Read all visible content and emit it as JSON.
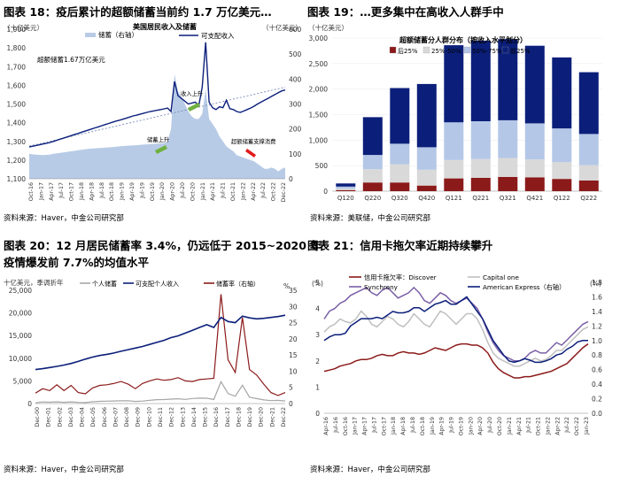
{
  "panels": [
    {
      "title": "图表 18：疫后累计的超额储蓄当前约 1.7 万亿美元…",
      "source": "资料来源：Haver，中金公司研究部"
    },
    {
      "title": "图表 19：…更多集中在高收入人群手中",
      "source": "资料来源：美联储，中金公司研究部"
    },
    {
      "title": "图表 20：12 月居民储蓄率 3.4%，仍远低于 2015~2020 年",
      "title2": "疫情爆发前 7.7%的均值水平",
      "source": "资料来源：Haver，中金公司研究部"
    },
    {
      "title": "图表 21：信用卡拖欠率近期持续攀升",
      "source": "资料来源：Haver，中金公司研究部"
    }
  ],
  "chart_data": [
    {
      "type": "line",
      "title": "美国居民收入及储蓄",
      "left_unit": "（十亿美元）",
      "right_unit": "（十亿美元）",
      "legend": [
        "储蓄（右轴）",
        "可支配收入"
      ],
      "ylim": [
        1100,
        1900
      ],
      "ylim_right": [
        0,
        600
      ],
      "y_ticks": [
        "1,100",
        "1,200",
        "1,300",
        "1,400",
        "1,500",
        "1,600",
        "1,700",
        "1,800",
        "1,900"
      ],
      "y_ticks_right": [
        "0",
        "100",
        "200",
        "300",
        "400",
        "500",
        "600"
      ],
      "x_ticks": [
        "Oct-16",
        "Jan-17",
        "Apr-17",
        "Jul-17",
        "Oct-17",
        "Jan-18",
        "Apr-18",
        "Jul-18",
        "Oct-18",
        "Jan-19",
        "Apr-19",
        "Jul-19",
        "Oct-19",
        "Jan-20",
        "Apr-20",
        "Jul-20",
        "Oct-20",
        "Jan-21",
        "Apr-21",
        "Jul-21",
        "Oct-21",
        "Jan-22",
        "Apr-22",
        "Jul-22",
        "Oct-22",
        "Dec-22"
      ],
      "annotations": [
        "超额储蓄1.67万亿美元",
        "收入上升",
        "储蓄上升",
        "超额储蓄支撑消费"
      ],
      "series": [
        {
          "name": "可支配收入",
          "color": "#0b1f7a",
          "values": [
            1270,
            1274,
            1278,
            1282,
            1286,
            1290,
            1294,
            1300,
            1306,
            1312,
            1318,
            1324,
            1330,
            1336,
            1342,
            1348,
            1354,
            1360,
            1366,
            1372,
            1378,
            1384,
            1390,
            1396,
            1402,
            1408,
            1413,
            1418,
            1424,
            1430,
            1436,
            1440,
            1445,
            1450,
            1455,
            1460,
            1463,
            1467,
            1470,
            1474,
            1478,
            1460,
            1620,
            1545,
            1530,
            1515,
            1500,
            1505,
            1510,
            1490,
            1590,
            1830,
            1510,
            1480,
            1470,
            1485,
            1480,
            1520,
            1475,
            1470,
            1460,
            1455,
            1462,
            1470,
            1478,
            1488,
            1500,
            1510,
            1520,
            1530,
            1540,
            1550,
            1560,
            1570,
            1575
          ]
        },
        {
          "name": "储蓄（右轴）",
          "color": "#b8cbe6",
          "values": [
            100,
            98,
            97,
            96,
            95,
            96,
            97,
            100,
            102,
            104,
            106,
            108,
            110,
            112,
            114,
            116,
            118,
            120,
            121,
            122,
            123,
            124,
            125,
            126,
            127,
            128,
            130,
            131,
            132,
            133,
            134,
            135,
            136,
            137,
            138,
            139,
            140,
            141,
            142,
            143,
            150,
            200,
            420,
            350,
            330,
            300,
            270,
            250,
            240,
            240,
            260,
            360,
            240,
            220,
            200,
            170,
            150,
            130,
            120,
            110,
            95,
            90,
            85,
            80,
            75,
            70,
            60,
            50,
            40,
            40,
            45,
            40,
            30,
            40,
            45
          ]
        }
      ]
    },
    {
      "type": "bar",
      "title": "超额储蓄分人群分布（按收入水平划分）",
      "unit": "（十亿美元）",
      "legend": [
        "后25%",
        "25%-50%",
        "50%-75%",
        "前25%"
      ],
      "categories": [
        "Q120",
        "Q220",
        "Q320",
        "Q420",
        "Q121",
        "Q221",
        "Q321",
        "Q421",
        "Q122",
        "Q222"
      ],
      "ylim": [
        0,
        3000
      ],
      "y_ticks": [
        "0",
        "500",
        "1,000",
        "1,500",
        "2,000",
        "2,500",
        "3,000"
      ],
      "series": [
        {
          "name": "后25%",
          "color": "#8b1a1a",
          "values": [
            20,
            170,
            170,
            110,
            250,
            260,
            280,
            270,
            240,
            210
          ]
        },
        {
          "name": "25%-50%",
          "color": "#d9d9d9",
          "values": [
            30,
            260,
            360,
            310,
            360,
            370,
            370,
            350,
            330,
            300
          ]
        },
        {
          "name": "50%-75%",
          "color": "#b4c7e7",
          "values": [
            40,
            280,
            400,
            440,
            740,
            740,
            740,
            710,
            660,
            610
          ]
        },
        {
          "name": "前25%",
          "color": "#0b1f7a",
          "values": [
            60,
            740,
            1090,
            1240,
            1510,
            1580,
            1590,
            1520,
            1390,
            1210
          ]
        }
      ]
    },
    {
      "type": "line",
      "unit_left": "十亿美元，季调折年",
      "unit_right": "%",
      "legend": [
        "个人储蓄",
        "可支配个人收入",
        "储蓄率（右轴）"
      ],
      "ylim": [
        0,
        25000
      ],
      "ylim_right": [
        0,
        35
      ],
      "y_ticks": [
        "0",
        "5,000",
        "10,000",
        "15,000",
        "20,000",
        "25,000"
      ],
      "y_ticks_right": [
        "0",
        "5",
        "10",
        "15",
        "20",
        "25",
        "30",
        "35"
      ],
      "x_ticks": [
        "Dec-00",
        "Dec-01",
        "Dec-02",
        "Dec-03",
        "Dec-04",
        "Dec-05",
        "Dec-06",
        "Dec-07",
        "Dec-08",
        "Dec-09",
        "Dec-10",
        "Dec-11",
        "Dec-12",
        "Dec-13",
        "Dec-14",
        "Dec-15",
        "Dec-16",
        "Dec-17",
        "Dec-18",
        "Dec-19",
        "Dec-20",
        "Dec-21",
        "Dec-22"
      ],
      "series": [
        {
          "name": "可支配个人收入",
          "color": "#0b1f7a",
          "values": [
            7500,
            7700,
            7950,
            8200,
            8500,
            8850,
            9300,
            9800,
            10250,
            10600,
            10850,
            11150,
            11550,
            11900,
            12250,
            12600,
            13050,
            13500,
            13950,
            14550,
            14950,
            15550,
            16150,
            16800,
            17400,
            16800,
            19000,
            18100,
            17850,
            19300,
            18900,
            18700,
            18800,
            19000,
            19200,
            19500
          ]
        },
        {
          "name": "个人储蓄",
          "color": "#a6a6a6",
          "values": [
            160,
            350,
            300,
            380,
            280,
            380,
            260,
            220,
            390,
            480,
            520,
            560,
            600,
            620,
            470,
            540,
            700,
            850,
            870,
            980,
            1050,
            920,
            1120,
            1200,
            1180,
            900,
            4800,
            2200,
            1600,
            4050,
            1400,
            1100,
            800,
            650,
            700,
            560
          ]
        },
        {
          "name": "储蓄率（右轴）",
          "color": "#8b1a1a",
          "values": [
            3.2,
            4.6,
            4.0,
            5.8,
            4.0,
            5.6,
            3.4,
            3.0,
            4.8,
            5.6,
            5.8,
            6.2,
            6.8,
            6.0,
            4.6,
            6.2,
            7.0,
            7.6,
            7.2,
            7.4,
            8.0,
            7.0,
            6.8,
            7.4,
            7.6,
            7.8,
            33.8,
            13.5,
            9.6,
            26.6,
            10.5,
            8.8,
            6.0,
            3.4,
            2.5,
            3.4
          ]
        }
      ]
    },
    {
      "type": "line",
      "unit_left": "(%)",
      "unit_right": "(%)",
      "legend": [
        "信用卡拖欠率：Discover",
        "Capital one",
        "Synchrony",
        "American Express（右轴）"
      ],
      "ylim": [
        0,
        5
      ],
      "ylim_right": [
        0,
        1.8
      ],
      "y_ticks": [
        "0",
        "1",
        "2",
        "3",
        "4",
        "5"
      ],
      "y_ticks_right": [
        "0.0",
        "0.2",
        "0.4",
        "0.6",
        "0.8",
        "1.0",
        "1.2",
        "1.4",
        "1.6",
        "1.8"
      ],
      "x_ticks": [
        "Apr-16",
        "Jul-16",
        "Oct-16",
        "Jan-17",
        "Apr-17",
        "Jul-17",
        "Oct-17",
        "Jan-18",
        "Apr-18",
        "Jul-18",
        "Oct-18",
        "Jan-19",
        "Apr-19",
        "Jul-19",
        "Oct-19",
        "Jan-20",
        "Apr-20",
        "Jul-20",
        "Oct-20",
        "Jan-21",
        "Apr-21",
        "Jul-21",
        "Oct-21",
        "Jan-22",
        "Apr-22",
        "Jul-22",
        "Oct-22",
        "Jan-23"
      ],
      "series": [
        {
          "name": "信用卡拖欠率：Discover",
          "color": "#8b1a1a",
          "values": [
            1.6,
            1.65,
            1.7,
            1.8,
            1.85,
            1.9,
            2.0,
            2.05,
            2.05,
            2.1,
            2.2,
            2.25,
            2.2,
            2.2,
            2.3,
            2.35,
            2.3,
            2.3,
            2.25,
            2.3,
            2.4,
            2.5,
            2.45,
            2.4,
            2.5,
            2.6,
            2.65,
            2.65,
            2.6,
            2.6,
            2.5,
            2.3,
            1.95,
            1.7,
            1.55,
            1.45,
            1.35,
            1.35,
            1.4,
            1.4,
            1.45,
            1.5,
            1.55,
            1.6,
            1.7,
            1.8,
            1.9,
            2.1,
            2.3,
            2.5,
            2.65
          ]
        },
        {
          "name": "Capital one",
          "color": "#bfbfbf",
          "values": [
            3.1,
            3.3,
            3.4,
            3.6,
            3.5,
            3.45,
            3.6,
            3.9,
            3.7,
            3.4,
            3.3,
            3.5,
            3.7,
            3.6,
            3.4,
            3.3,
            3.5,
            3.8,
            3.6,
            3.4,
            3.3,
            3.6,
            3.9,
            3.8,
            3.6,
            3.4,
            3.6,
            3.8,
            3.8,
            3.6,
            3.2,
            2.7,
            2.3,
            2.1,
            2.0,
            1.9,
            1.8,
            1.8,
            1.9,
            2.0,
            2.1,
            2.0,
            2.05,
            2.2,
            2.4,
            2.4,
            2.6,
            2.8,
            3.0,
            3.2,
            3.3
          ]
        },
        {
          "name": "Synchrony",
          "color": "#7b60a8",
          "values": [
            3.6,
            3.9,
            4.0,
            4.2,
            4.3,
            4.5,
            4.6,
            4.7,
            4.8,
            4.6,
            4.5,
            4.7,
            4.8,
            4.6,
            4.4,
            4.5,
            4.6,
            4.8,
            4.6,
            4.3,
            4.2,
            4.4,
            4.6,
            4.5,
            4.3,
            4.2,
            4.3,
            4.4,
            4.2,
            4.0,
            3.6,
            3.1,
            2.7,
            2.4,
            2.2,
            2.1,
            2.0,
            2.0,
            2.1,
            2.3,
            2.4,
            2.3,
            2.3,
            2.5,
            2.7,
            2.6,
            2.8,
            3.0,
            3.2,
            3.4,
            3.5
          ]
        },
        {
          "name": "American Express（右轴）",
          "color": "#0b1f7a",
          "values": [
            1.0,
            1.05,
            1.08,
            1.08,
            1.1,
            1.2,
            1.25,
            1.3,
            1.3,
            1.3,
            1.32,
            1.3,
            1.35,
            1.4,
            1.38,
            1.38,
            1.4,
            1.45,
            1.45,
            1.4,
            1.45,
            1.5,
            1.52,
            1.55,
            1.5,
            1.5,
            1.55,
            1.6,
            1.5,
            1.4,
            1.3,
            1.15,
            1.0,
            0.9,
            0.8,
            0.72,
            0.7,
            0.72,
            0.75,
            0.73,
            0.7,
            0.7,
            0.72,
            0.75,
            0.8,
            0.82,
            0.88,
            0.92,
            0.98,
            1.0,
            1.0
          ]
        }
      ]
    }
  ]
}
